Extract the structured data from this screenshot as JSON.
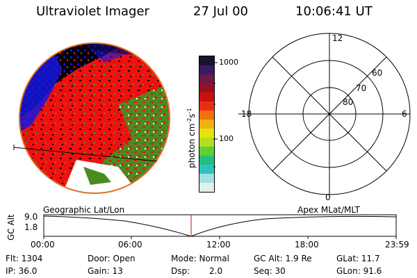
{
  "header": {
    "title": "Ultraviolet Imager",
    "date": "27 Jul 00",
    "time": "10:06:41 UT"
  },
  "colorbar": {
    "label": "photon cm",
    "label_sup1": "-2",
    "label_mid": "s",
    "label_sup2": "-1",
    "tick_1000": "1000",
    "tick_100": "100",
    "colors": [
      "#1a1030",
      "#3a1a60",
      "#6b1a4a",
      "#9a1020",
      "#c81010",
      "#e83010",
      "#f07010",
      "#f0b010",
      "#e8e010",
      "#b0e020",
      "#60d030",
      "#20c080",
      "#30c0c0",
      "#a0e0e0",
      "#e0f0f0"
    ]
  },
  "polar": {
    "label_12": "12",
    "label_18": "18",
    "label_6": "6",
    "label_0": "0",
    "label_60": "60",
    "label_70": "70",
    "label_80": "80"
  },
  "timeline": {
    "left_label": "Geographic Lat/Lon",
    "right_label": "Apex MLat/MLT",
    "axis_title": "GC Alt",
    "y_top": "9.0",
    "y_bottom": "1.8",
    "ticks": [
      "00:00",
      "06:00",
      "12:00",
      "18:00",
      "23:59"
    ]
  },
  "info": {
    "flt": "Flt: 1304",
    "ip": "IP: 36.0",
    "door": "Door: Open",
    "gain": "Gain: 13",
    "mode": "Mode: Normal",
    "dsp_label": "Dsp:",
    "dsp_value": "2.0",
    "gcalt": "GC Alt: 1.9 Re",
    "seq": "Seq: 30",
    "glat": "GLat: 11.7",
    "glon": "GLon: 91.6"
  },
  "image": {
    "colors": {
      "blue": "#1515e0",
      "red": "#f01010",
      "green": "#4a8a20",
      "black": "#000000",
      "white": "#ffffff",
      "rim": "#e07020"
    }
  }
}
